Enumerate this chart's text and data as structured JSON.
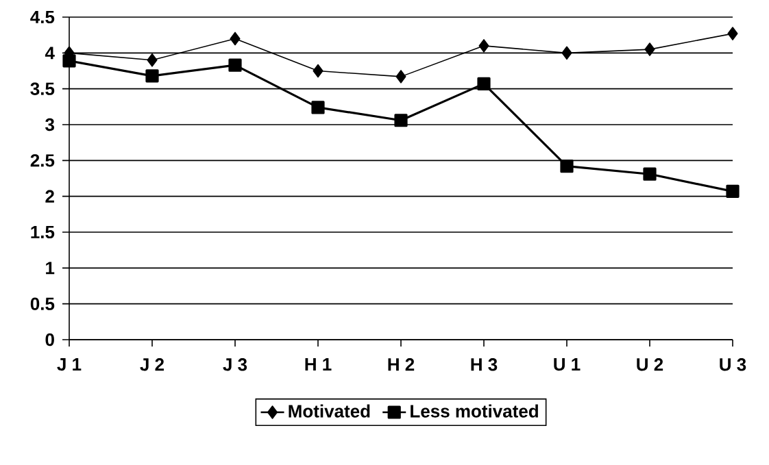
{
  "chart_data": {
    "type": "line",
    "categories": [
      "J 1",
      "J 2",
      "J 3",
      "H 1",
      "H 2",
      "H 3",
      "U 1",
      "U 2",
      "U 3"
    ],
    "series": [
      {
        "name": "Motivated",
        "color": "#000000",
        "marker": "diamond",
        "values": [
          4.0,
          3.9,
          4.2,
          3.75,
          3.67,
          4.1,
          4.0,
          4.05,
          4.27
        ]
      },
      {
        "name": "Less motivated",
        "color": "#000000",
        "marker": "square",
        "values": [
          3.89,
          3.68,
          3.83,
          3.24,
          3.06,
          3.57,
          2.42,
          2.31,
          2.07
        ]
      }
    ],
    "ylim": [
      0,
      4.5
    ],
    "yticks": [
      0,
      0.5,
      1,
      1.5,
      2,
      2.5,
      3,
      3.5,
      4,
      4.5
    ],
    "grid": "y",
    "legend": "bottom",
    "line_style": "solid"
  }
}
